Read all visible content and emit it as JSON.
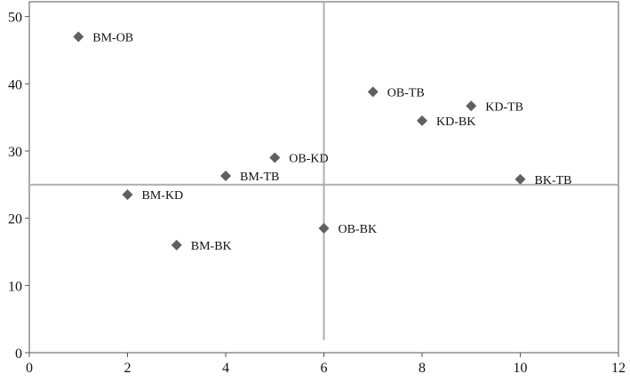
{
  "chart_data": {
    "type": "scatter",
    "title": "",
    "xlabel": "",
    "ylabel": "",
    "xlim": [
      0,
      12
    ],
    "ylim": [
      0,
      52
    ],
    "xticks": [
      0,
      2,
      4,
      6,
      8,
      10,
      12
    ],
    "yticks": [
      0,
      10,
      20,
      30,
      40,
      50
    ],
    "grid": false,
    "legend": "none",
    "marker": "diamond",
    "marker_color": "#606060",
    "reference_lines": {
      "vertical_x": 6,
      "horizontal_y": 25,
      "color": "#b0b0b0"
    },
    "points": [
      {
        "label": "BM-OB",
        "x": 1,
        "y": 47
      },
      {
        "label": "BM-KD",
        "x": 2,
        "y": 23.5
      },
      {
        "label": "BM-BK",
        "x": 3,
        "y": 16
      },
      {
        "label": "BM-TB",
        "x": 4,
        "y": 26.3
      },
      {
        "label": "OB-KD",
        "x": 5,
        "y": 29
      },
      {
        "label": "OB-BK",
        "x": 6,
        "y": 18.5
      },
      {
        "label": "OB-TB",
        "x": 7,
        "y": 38.8
      },
      {
        "label": "KD-BK",
        "x": 8,
        "y": 34.5
      },
      {
        "label": "KD-TB",
        "x": 9,
        "y": 36.7
      },
      {
        "label": "BK-TB",
        "x": 10,
        "y": 25.8
      }
    ]
  }
}
